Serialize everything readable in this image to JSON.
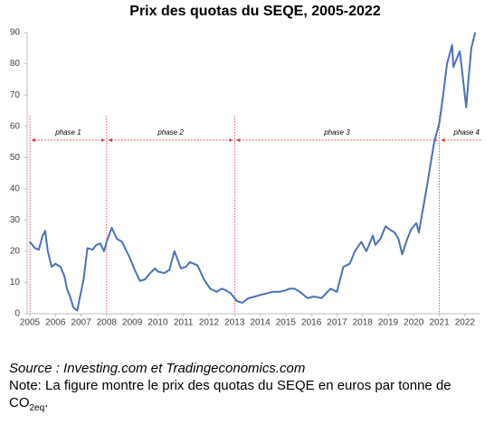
{
  "chart_data": {
    "type": "line",
    "title": "Prix des quotas du SEQE, 2005-2022",
    "x": [
      2005.0,
      2005.2,
      2005.35,
      2005.5,
      2005.6,
      2005.7,
      2005.85,
      2006.0,
      2006.2,
      2006.35,
      2006.45,
      2006.55,
      2006.7,
      2006.85,
      2006.95,
      2007.1,
      2007.25,
      2007.45,
      2007.6,
      2007.75,
      2007.9,
      2008.0,
      2008.2,
      2008.4,
      2008.6,
      2008.9,
      2009.1,
      2009.3,
      2009.5,
      2009.7,
      2009.9,
      2010.0,
      2010.25,
      2010.45,
      2010.65,
      2010.9,
      2011.1,
      2011.25,
      2011.55,
      2011.8,
      2012.05,
      2012.3,
      2012.5,
      2012.65,
      2012.85,
      2013.1,
      2013.3,
      2013.55,
      2013.8,
      2014.0,
      2014.25,
      2014.5,
      2014.75,
      2015.0,
      2015.15,
      2015.35,
      2015.55,
      2015.85,
      2016.1,
      2016.4,
      2016.75,
      2017.0,
      2017.25,
      2017.5,
      2017.7,
      2017.95,
      2018.15,
      2018.4,
      2018.5,
      2018.7,
      2018.9,
      2019.05,
      2019.25,
      2019.4,
      2019.55,
      2019.75,
      2019.9,
      2020.1,
      2020.2,
      2020.35,
      2020.5,
      2020.6,
      2020.7,
      2020.8,
      2020.9,
      2021.0,
      2021.15,
      2021.3,
      2021.5,
      2021.55,
      2021.7,
      2021.8,
      2021.9,
      2022.05,
      2022.15,
      2022.25,
      2022.4
    ],
    "values": [
      23,
      21,
      20.5,
      25,
      26.5,
      20,
      15,
      16,
      15,
      12,
      8,
      6,
      2,
      1,
      5,
      11,
      21,
      20.5,
      22,
      22.5,
      20,
      23,
      27.5,
      24,
      23,
      18,
      14,
      10.5,
      11,
      13,
      14.5,
      13.5,
      13,
      14,
      20,
      14.5,
      15,
      16.5,
      15.5,
      11,
      8,
      7,
      8,
      7.5,
      6.5,
      4,
      3.5,
      5,
      5.5,
      6,
      6.5,
      7,
      7,
      7.5,
      8,
      8,
      7,
      5,
      5.5,
      5,
      8,
      7,
      15,
      16,
      20,
      23,
      20,
      25,
      22,
      24,
      28,
      27,
      26,
      24,
      19,
      24,
      27,
      29,
      26,
      33,
      40,
      45,
      50,
      55,
      58,
      61,
      70,
      80,
      86,
      79,
      82,
      84,
      77,
      66,
      76,
      85,
      90
    ],
    "color": "#4a72b8",
    "xlim": [
      2005,
      2022.5
    ],
    "ylim": [
      0,
      90
    ],
    "xticks": [
      2005,
      2006,
      2007,
      2008,
      2009,
      2010,
      2011,
      2012,
      2013,
      2014,
      2015,
      2016,
      2017,
      2018,
      2019,
      2020,
      2021,
      2022
    ],
    "yticks": [
      0,
      10,
      20,
      30,
      40,
      50,
      60,
      70,
      80,
      90
    ],
    "phase_lines": [
      2005,
      2008,
      2013,
      2021
    ],
    "phase_labels": [
      "phase 1",
      "phase 2",
      "phase 3",
      "phase 4"
    ],
    "source": "Source : Investing.com et Tradingeconomics.com",
    "note": "Note: La figure montre le prix des quotas du SEQE en euros par tonne de CO",
    "note_subscript": "2eq",
    "note_end": "."
  }
}
